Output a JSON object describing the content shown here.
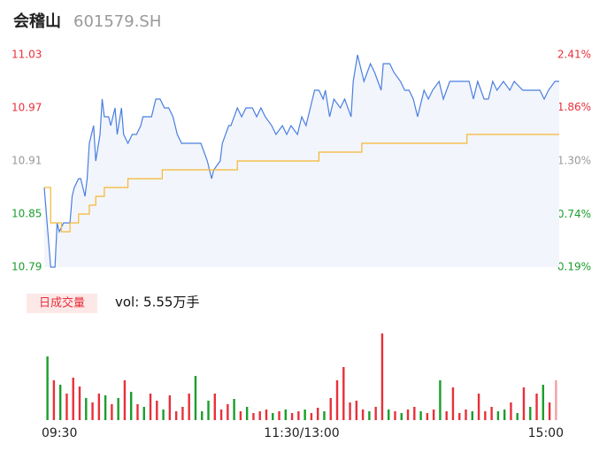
{
  "header": {
    "name": "会稽山",
    "code": "601579.SH"
  },
  "chart_data": [
    {
      "type": "line",
      "ylim": [
        10.79,
        11.03
      ],
      "yticks": [
        10.79,
        10.85,
        10.91,
        10.97,
        11.03
      ],
      "ytick_colors": [
        "#1a9e2c",
        "#1a9e2c",
        "#999999",
        "#e8303a",
        "#e8303a"
      ],
      "y2lim": [
        0.19,
        2.41
      ],
      "y2ticks": [
        {
          "value": 0.19,
          "label": "0.19%"
        },
        {
          "value": 0.74,
          "label": "0.74%"
        },
        {
          "value": 1.3,
          "label": "1.30%"
        },
        {
          "value": 1.86,
          "label": "1.86%"
        },
        {
          "value": 2.41,
          "label": "2.41%"
        }
      ],
      "xlim": [
        0,
        240
      ],
      "grid": false,
      "area_color": "#f2f5fc",
      "series": [
        {
          "color": "#4a7fe0",
          "step": false,
          "x": [
            0,
            2,
            3,
            5,
            6,
            7,
            9,
            12,
            13,
            14,
            16,
            17,
            19,
            20,
            21,
            23,
            24,
            26,
            27,
            28,
            30,
            31,
            33,
            34,
            36,
            37,
            39,
            41,
            43,
            45,
            46,
            49,
            50,
            52,
            54,
            56,
            58,
            60,
            62,
            64,
            67,
            70,
            73,
            76,
            78,
            79,
            82,
            83,
            86,
            87,
            90,
            92,
            94,
            97,
            99,
            101,
            103,
            106,
            108,
            111,
            113,
            115,
            118,
            120,
            122,
            124,
            126,
            128,
            130,
            131,
            133,
            135,
            138,
            140,
            143,
            144,
            146,
            148,
            149,
            152,
            154,
            157,
            158,
            161,
            163,
            166,
            168,
            170,
            172,
            174,
            177,
            179,
            181,
            184,
            186,
            189,
            191,
            194,
            198,
            200,
            202,
            205,
            207,
            209,
            211,
            214,
            217,
            219,
            223,
            225,
            228,
            231,
            233,
            235,
            238,
            240
          ],
          "values": [
            10.88,
            10.82,
            10.79,
            10.79,
            10.84,
            10.83,
            10.84,
            10.84,
            10.87,
            10.88,
            10.89,
            10.89,
            10.87,
            10.89,
            10.93,
            10.95,
            10.91,
            10.94,
            10.98,
            10.96,
            10.96,
            10.95,
            10.97,
            10.94,
            10.97,
            10.94,
            10.93,
            10.94,
            10.94,
            10.95,
            10.96,
            10.96,
            10.96,
            10.98,
            10.98,
            10.97,
            10.97,
            10.96,
            10.94,
            10.93,
            10.93,
            10.93,
            10.93,
            10.91,
            10.89,
            10.9,
            10.91,
            10.93,
            10.95,
            10.95,
            10.97,
            10.96,
            10.97,
            10.97,
            10.96,
            10.97,
            10.96,
            10.95,
            10.94,
            10.95,
            10.94,
            10.95,
            10.94,
            10.96,
            10.95,
            10.97,
            10.99,
            10.99,
            10.98,
            10.99,
            10.96,
            10.98,
            10.97,
            10.98,
            10.96,
            11.0,
            11.03,
            11.01,
            11.0,
            11.02,
            11.01,
            10.99,
            11.02,
            11.02,
            11.01,
            11.0,
            10.99,
            10.99,
            10.98,
            10.96,
            10.99,
            10.98,
            10.99,
            11.0,
            10.98,
            11.0,
            11.0,
            11.0,
            11.0,
            10.98,
            11.0,
            10.98,
            10.98,
            11.0,
            10.99,
            11.0,
            10.99,
            11.0,
            10.99,
            10.99,
            10.99,
            10.99,
            10.98,
            10.99,
            11.0,
            11.0
          ]
        },
        {
          "color": "#f5b731",
          "step": true,
          "x": [
            0,
            3,
            8,
            12,
            16,
            21,
            24,
            28,
            39,
            55,
            90,
            128,
            148,
            197,
            240
          ],
          "values": [
            10.88,
            10.84,
            10.83,
            10.84,
            10.85,
            10.86,
            10.87,
            10.88,
            10.89,
            10.9,
            10.91,
            10.92,
            10.93,
            10.94,
            10.94
          ]
        }
      ]
    },
    {
      "type": "bar",
      "title": "日成交量",
      "subtitle": "vol: 5.55万手",
      "xlim": [
        0,
        240
      ],
      "ylim": [
        0,
        100
      ],
      "xticks": [
        {
          "value": 0,
          "label": "09:30"
        },
        {
          "value": 120,
          "label": "11:30/13:00"
        },
        {
          "value": 240,
          "label": "15:00"
        }
      ],
      "x": [
        1.5,
        4.5,
        7.5,
        10.5,
        13.5,
        16.5,
        19.5,
        22.5,
        25.5,
        28.5,
        31.5,
        34.5,
        37.5,
        40.5,
        43.5,
        46.5,
        49.5,
        52.5,
        55.5,
        58.5,
        61.5,
        64.5,
        67.5,
        70.5,
        73.5,
        76.5,
        79.5,
        82.5,
        85.5,
        88.5,
        91.5,
        94.5,
        97.5,
        100.5,
        103.5,
        106.5,
        109.5,
        112.5,
        115.5,
        118.5,
        121.5,
        124.5,
        127.5,
        130.5,
        133.5,
        136.5,
        139.5,
        142.5,
        145.5,
        148.5,
        151.5,
        154.5,
        157.5,
        160.5,
        163.5,
        166.5,
        169.5,
        172.5,
        175.5,
        178.5,
        181.5,
        184.5,
        187.5,
        190.5,
        193.5,
        196.5,
        199.5,
        202.5,
        205.5,
        208.5,
        211.5,
        214.5,
        217.5,
        220.5,
        223.5,
        226.5,
        229.5,
        232.5,
        235.5,
        238.5
      ],
      "values": [
        72,
        45,
        40,
        30,
        48,
        38,
        25,
        20,
        30,
        28,
        18,
        25,
        45,
        32,
        18,
        15,
        30,
        22,
        12,
        28,
        10,
        15,
        30,
        50,
        10,
        22,
        30,
        12,
        18,
        24,
        10,
        15,
        8,
        10,
        12,
        8,
        10,
        12,
        8,
        10,
        12,
        8,
        14,
        10,
        25,
        45,
        60,
        20,
        22,
        12,
        10,
        15,
        98,
        12,
        10,
        8,
        12,
        15,
        10,
        8,
        12,
        45,
        10,
        37,
        8,
        12,
        10,
        30,
        10,
        15,
        10,
        12,
        20,
        8,
        37,
        15,
        30,
        40,
        20,
        45
      ],
      "colors": [
        "#1a9e2c",
        "#e8303a",
        "#1a9e2c",
        "#e8303a",
        "#e8303a",
        "#e8303a",
        "#1a9e2c",
        "#e8303a",
        "#e8303a",
        "#1a9e2c",
        "#e8303a",
        "#1a9e2c",
        "#e8303a",
        "#1a9e2c",
        "#e8303a",
        "#1a9e2c",
        "#e8303a",
        "#e8303a",
        "#1a9e2c",
        "#e8303a",
        "#e8303a",
        "#e8303a",
        "#e8303a",
        "#1a9e2c",
        "#1a9e2c",
        "#1a9e2c",
        "#e8303a",
        "#e8303a",
        "#e8303a",
        "#1a9e2c",
        "#e8303a",
        "#1a9e2c",
        "#e8303a",
        "#e8303a",
        "#e8303a",
        "#1a9e2c",
        "#e8303a",
        "#1a9e2c",
        "#e8303a",
        "#e8303a",
        "#1a9e2c",
        "#e8303a",
        "#e8303a",
        "#1a9e2c",
        "#e8303a",
        "#e8303a",
        "#e8303a",
        "#e8303a",
        "#e8303a",
        "#e8303a",
        "#1a9e2c",
        "#e8303a",
        "#e8303a",
        "#1a9e2c",
        "#e8303a",
        "#1a9e2c",
        "#e8303a",
        "#e8303a",
        "#1a9e2c",
        "#e8303a",
        "#e8303a",
        "#1a9e2c",
        "#e8303a",
        "#e8303a",
        "#e8303a",
        "#e8303a",
        "#1a9e2c",
        "#e8303a",
        "#e8303a",
        "#e8303a",
        "#1a9e2c",
        "#1a9e2c",
        "#e8303a",
        "#1a9e2c",
        "#e8303a",
        "#1a9e2c",
        "#e8303a",
        "#1a9e2c",
        "#e8303a",
        "#f2a0a4"
      ]
    }
  ]
}
